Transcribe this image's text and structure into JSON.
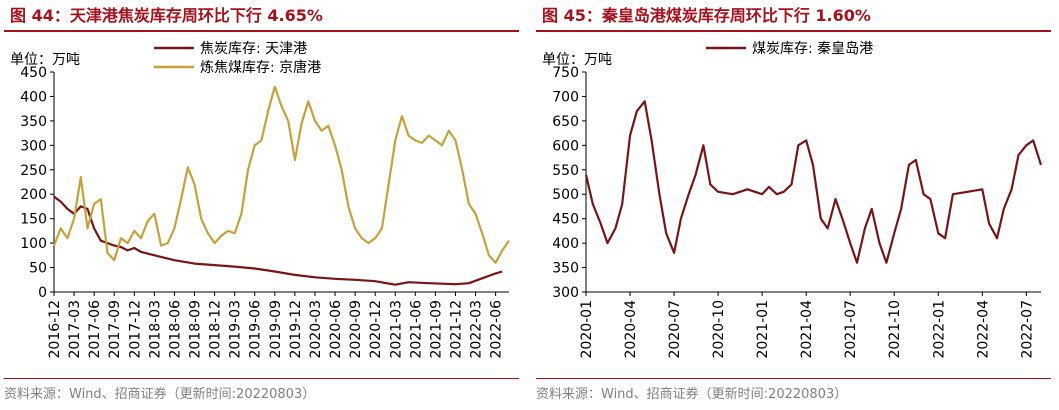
{
  "colors": {
    "title": "#a8111b",
    "coke": "#7a1416",
    "coking_coal": "#c6a23a",
    "qhd": "#7a1416"
  },
  "left": {
    "title": "图 44：天津港焦炭库存周环比下行 4.65%",
    "source": "资料来源：Wind、招商证券（更新时间:20220803）",
    "unit": "单位：万吨"
  },
  "right": {
    "title": "图 45：秦皇岛港煤炭库存周环比下行 1.60%",
    "source": "资料来源：Wind、招商证券（更新时间:20220803）",
    "unit": "单位：万吨"
  },
  "chart_data": [
    {
      "type": "line",
      "ylim": [
        0,
        450
      ],
      "yticks": [
        "0",
        "50",
        "100",
        "150",
        "200",
        "250",
        "300",
        "350",
        "400",
        "450"
      ],
      "x_domain": [
        "2016-12",
        "2022-08"
      ],
      "xticks": [
        "2016-12",
        "2017-03",
        "2017-06",
        "2017-09",
        "2017-12",
        "2018-03",
        "2018-06",
        "2018-09",
        "2018-12",
        "2019-03",
        "2019-06",
        "2019-09",
        "2019-12",
        "2020-03",
        "2020-06",
        "2020-09",
        "2020-12",
        "2021-03",
        "2021-06",
        "2021-09",
        "2021-12",
        "2022-03",
        "2022-06"
      ],
      "legend_position": "top",
      "grid": false,
      "series": [
        {
          "name": "焦炭库存: 天津港",
          "color": "#7a1416",
          "points": [
            [
              "2016-12",
              195
            ],
            [
              "2017-01",
              185
            ],
            [
              "2017-02",
              170
            ],
            [
              "2017-03",
              160
            ],
            [
              "2017-04",
              175
            ],
            [
              "2017-05",
              170
            ],
            [
              "2017-06",
              130
            ],
            [
              "2017-07",
              105
            ],
            [
              "2017-08",
              100
            ],
            [
              "2017-09",
              95
            ],
            [
              "2017-10",
              92
            ],
            [
              "2017-11",
              85
            ],
            [
              "2017-12",
              90
            ],
            [
              "2018-01",
              82
            ],
            [
              "2018-03",
              75
            ],
            [
              "2018-06",
              65
            ],
            [
              "2018-09",
              58
            ],
            [
              "2018-12",
              55
            ],
            [
              "2019-03",
              52
            ],
            [
              "2019-06",
              48
            ],
            [
              "2019-09",
              42
            ],
            [
              "2019-12",
              35
            ],
            [
              "2020-03",
              30
            ],
            [
              "2020-06",
              27
            ],
            [
              "2020-09",
              25
            ],
            [
              "2020-12",
              22
            ],
            [
              "2021-03",
              15
            ],
            [
              "2021-05",
              20
            ],
            [
              "2021-08",
              18
            ],
            [
              "2021-12",
              16
            ],
            [
              "2022-02",
              18
            ],
            [
              "2022-04",
              28
            ],
            [
              "2022-06",
              38
            ],
            [
              "2022-07",
              42
            ]
          ]
        },
        {
          "name": "炼焦煤库存: 京唐港",
          "color": "#c6a23a",
          "points": [
            [
              "2016-12",
              95
            ],
            [
              "2017-01",
              130
            ],
            [
              "2017-02",
              110
            ],
            [
              "2017-03",
              150
            ],
            [
              "2017-04",
              235
            ],
            [
              "2017-05",
              130
            ],
            [
              "2017-06",
              180
            ],
            [
              "2017-07",
              190
            ],
            [
              "2017-08",
              80
            ],
            [
              "2017-09",
              65
            ],
            [
              "2017-10",
              110
            ],
            [
              "2017-11",
              100
            ],
            [
              "2017-12",
              125
            ],
            [
              "2018-01",
              110
            ],
            [
              "2018-02",
              145
            ],
            [
              "2018-03",
              160
            ],
            [
              "2018-04",
              95
            ],
            [
              "2018-05",
              100
            ],
            [
              "2018-06",
              130
            ],
            [
              "2018-07",
              190
            ],
            [
              "2018-08",
              255
            ],
            [
              "2018-09",
              220
            ],
            [
              "2018-10",
              150
            ],
            [
              "2018-11",
              120
            ],
            [
              "2018-12",
              100
            ],
            [
              "2019-01",
              115
            ],
            [
              "2019-02",
              125
            ],
            [
              "2019-03",
              120
            ],
            [
              "2019-04",
              160
            ],
            [
              "2019-05",
              250
            ],
            [
              "2019-06",
              300
            ],
            [
              "2019-07",
              310
            ],
            [
              "2019-08",
              370
            ],
            [
              "2019-09",
              420
            ],
            [
              "2019-10",
              380
            ],
            [
              "2019-11",
              350
            ],
            [
              "2019-12",
              270
            ],
            [
              "2020-01",
              345
            ],
            [
              "2020-02",
              390
            ],
            [
              "2020-03",
              350
            ],
            [
              "2020-04",
              330
            ],
            [
              "2020-05",
              340
            ],
            [
              "2020-06",
              300
            ],
            [
              "2020-07",
              250
            ],
            [
              "2020-08",
              175
            ],
            [
              "2020-09",
              130
            ],
            [
              "2020-10",
              110
            ],
            [
              "2020-11",
              100
            ],
            [
              "2020-12",
              110
            ],
            [
              "2021-01",
              130
            ],
            [
              "2021-02",
              220
            ],
            [
              "2021-03",
              310
            ],
            [
              "2021-04",
              360
            ],
            [
              "2021-05",
              320
            ],
            [
              "2021-06",
              310
            ],
            [
              "2021-07",
              305
            ],
            [
              "2021-08",
              320
            ],
            [
              "2021-09",
              310
            ],
            [
              "2021-10",
              300
            ],
            [
              "2021-11",
              330
            ],
            [
              "2021-12",
              310
            ],
            [
              "2022-01",
              250
            ],
            [
              "2022-02",
              180
            ],
            [
              "2022-03",
              160
            ],
            [
              "2022-04",
              120
            ],
            [
              "2022-05",
              75
            ],
            [
              "2022-06",
              60
            ],
            [
              "2022-07",
              85
            ],
            [
              "2022-08",
              105
            ]
          ]
        }
      ]
    },
    {
      "type": "line",
      "ylim": [
        300,
        750
      ],
      "yticks": [
        "300",
        "350",
        "400",
        "450",
        "500",
        "550",
        "600",
        "650",
        "700",
        "750"
      ],
      "x_domain": [
        "2020-01",
        "2022-08"
      ],
      "xticks": [
        "2020-01",
        "2020-04",
        "2020-07",
        "2020-10",
        "2021-01",
        "2021-04",
        "2021-07",
        "2021-10",
        "2022-01",
        "2022-04",
        "2022-07"
      ],
      "legend_position": "top",
      "grid": false,
      "series": [
        {
          "name": "煤炭库存: 秦皇岛港",
          "color": "#7a1416",
          "points": [
            [
              "2020-01",
              540
            ],
            [
              "2020-01-15",
              480
            ],
            [
              "2020-02",
              440
            ],
            [
              "2020-02-15",
              400
            ],
            [
              "2020-03",
              430
            ],
            [
              "2020-03-15",
              480
            ],
            [
              "2020-04",
              620
            ],
            [
              "2020-04-15",
              670
            ],
            [
              "2020-05",
              690
            ],
            [
              "2020-05-15",
              610
            ],
            [
              "2020-06",
              500
            ],
            [
              "2020-06-15",
              420
            ],
            [
              "2020-07",
              380
            ],
            [
              "2020-07-15",
              450
            ],
            [
              "2020-08",
              500
            ],
            [
              "2020-08-15",
              540
            ],
            [
              "2020-09",
              600
            ],
            [
              "2020-09-15",
              520
            ],
            [
              "2020-10",
              505
            ],
            [
              "2020-11",
              500
            ],
            [
              "2020-12",
              510
            ],
            [
              "2021-01",
              500
            ],
            [
              "2021-01-15",
              515
            ],
            [
              "2021-02",
              500
            ],
            [
              "2021-02-15",
              505
            ],
            [
              "2021-03",
              520
            ],
            [
              "2021-03-15",
              600
            ],
            [
              "2021-04",
              610
            ],
            [
              "2021-04-15",
              560
            ],
            [
              "2021-05",
              450
            ],
            [
              "2021-05-15",
              430
            ],
            [
              "2021-06",
              490
            ],
            [
              "2021-06-15",
              450
            ],
            [
              "2021-07",
              400
            ],
            [
              "2021-07-15",
              360
            ],
            [
              "2021-08",
              430
            ],
            [
              "2021-08-15",
              470
            ],
            [
              "2021-09",
              400
            ],
            [
              "2021-09-15",
              360
            ],
            [
              "2021-10",
              420
            ],
            [
              "2021-10-15",
              470
            ],
            [
              "2021-11",
              560
            ],
            [
              "2021-11-15",
              570
            ],
            [
              "2021-12",
              500
            ],
            [
              "2021-12-15",
              490
            ],
            [
              "2022-01",
              420
            ],
            [
              "2022-01-15",
              410
            ],
            [
              "2022-02",
              500
            ],
            [
              "2022-03",
              505
            ],
            [
              "2022-04",
              510
            ],
            [
              "2022-04-15",
              440
            ],
            [
              "2022-05",
              410
            ],
            [
              "2022-05-15",
              470
            ],
            [
              "2022-06",
              510
            ],
            [
              "2022-06-15",
              580
            ],
            [
              "2022-07",
              600
            ],
            [
              "2022-07-15",
              610
            ],
            [
              "2022-08",
              560
            ]
          ]
        }
      ]
    }
  ]
}
